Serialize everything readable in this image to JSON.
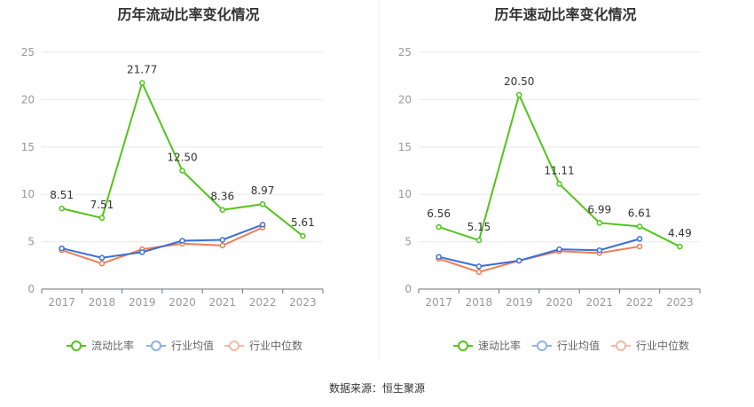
{
  "source": "数据来源：恒生聚源",
  "colors": {
    "main": "#52c41a",
    "industry_avg": "#3b6fd6",
    "industry_median": "#f07c57",
    "legend_avg": "#8fb0e6",
    "legend_median": "#f4b9a4",
    "axis_text": "#999999",
    "grid": "#e8e8f0",
    "label_text": "#333333"
  },
  "chart_data": [
    {
      "type": "line",
      "title": "历年流动比率变化情况",
      "categories": [
        "2017",
        "2018",
        "2019",
        "2020",
        "2021",
        "2022",
        "2023"
      ],
      "ylim": [
        0,
        25
      ],
      "yticks": [
        "0",
        "5",
        "10",
        "15",
        "20",
        "25"
      ],
      "grid": true,
      "legend_position": "bottom",
      "series": [
        {
          "name": "流动比率",
          "values": [
            8.51,
            7.51,
            21.77,
            12.5,
            8.36,
            8.97,
            5.61
          ],
          "labels": [
            "8.51",
            "7.51",
            "21.77",
            "12.50",
            "8.36",
            "8.97",
            "5.61"
          ]
        },
        {
          "name": "行业均值",
          "values": [
            4.3,
            3.3,
            3.9,
            5.1,
            5.2,
            6.8,
            null
          ]
        },
        {
          "name": "行业中位数",
          "values": [
            4.1,
            2.7,
            4.2,
            4.8,
            4.6,
            6.5,
            null
          ]
        }
      ]
    },
    {
      "type": "line",
      "title": "历年速动比率变化情况",
      "categories": [
        "2017",
        "2018",
        "2019",
        "2020",
        "2021",
        "2022",
        "2023"
      ],
      "ylim": [
        0,
        25
      ],
      "yticks": [
        "0",
        "5",
        "10",
        "15",
        "20",
        "25"
      ],
      "grid": true,
      "legend_position": "bottom",
      "series": [
        {
          "name": "速动比率",
          "values": [
            6.56,
            5.15,
            20.5,
            11.11,
            6.99,
            6.61,
            4.49
          ],
          "labels": [
            "6.56",
            "5.15",
            "20.50",
            "11.11",
            "6.99",
            "6.61",
            "4.49"
          ]
        },
        {
          "name": "行业均值",
          "values": [
            3.4,
            2.4,
            3.0,
            4.2,
            4.1,
            5.3,
            null
          ]
        },
        {
          "name": "行业中位数",
          "values": [
            3.2,
            1.8,
            3.0,
            4.0,
            3.8,
            4.5,
            null
          ]
        }
      ]
    }
  ]
}
